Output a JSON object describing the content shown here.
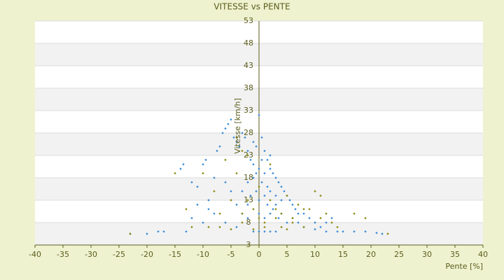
{
  "chart_data": {
    "type": "scatter",
    "title": "VITESSE vs PENTE",
    "x_label": "Pente [%]",
    "y_label": "Vitesse [km/h]",
    "xlim": [
      -40,
      40
    ],
    "xticks": [
      -40,
      -35,
      -30,
      -25,
      -20,
      -15,
      -10,
      -5,
      0,
      5,
      10,
      15,
      20,
      25,
      30,
      35,
      40
    ],
    "ylim": [
      3,
      53
    ],
    "yticks": [
      3,
      8,
      13,
      18,
      23,
      28,
      33,
      38,
      43,
      48,
      53
    ],
    "grid": true,
    "series": [
      {
        "color": "#3a8ad6",
        "x": [
          -23,
          -20,
          -18,
          -17,
          -13,
          -14,
          -13.5,
          -12,
          -11,
          -10,
          -9.5,
          -9,
          -8,
          -7.5,
          -7,
          -6.5,
          -6,
          -5.5,
          -5,
          -4.5,
          -4,
          -3.5,
          -3,
          -2.5,
          -2,
          -1.5,
          -1,
          -0.5,
          0,
          0.5,
          1,
          1.5,
          2,
          2.5,
          3,
          3.5,
          4,
          4.5,
          5,
          5.5,
          6,
          6.5,
          7,
          8,
          9,
          10,
          11,
          12,
          13,
          14,
          15,
          17,
          19,
          21,
          22,
          -1,
          -0.5,
          0,
          0.5,
          1,
          1.5,
          2,
          -1.5,
          -2,
          -3,
          -4,
          -5,
          -6,
          -8,
          -10,
          0,
          1,
          2,
          3,
          4,
          5,
          6,
          0,
          1,
          2,
          3,
          -1,
          0.5,
          -0.5,
          1,
          2,
          -1,
          3,
          4,
          -2,
          -3,
          0,
          1.5,
          2.5,
          3.5,
          -9,
          -11,
          -12,
          -6,
          -4,
          -2,
          7,
          8,
          10,
          12
        ],
        "values": [
          5.5,
          5.5,
          6,
          6,
          6,
          20,
          21,
          17,
          16,
          21,
          22,
          13,
          18,
          24,
          25,
          28,
          29,
          30,
          31,
          27,
          26,
          25,
          28,
          27,
          24,
          22,
          26,
          25,
          32,
          27,
          24,
          22,
          20,
          19,
          18,
          17,
          16,
          15,
          14,
          13,
          12,
          11,
          10,
          10,
          9,
          8,
          7,
          8,
          9,
          6,
          6,
          6,
          6,
          5.7,
          5.5,
          18,
          15,
          20,
          17,
          14,
          12,
          15,
          14,
          12,
          10,
          12,
          15,
          17,
          10,
          8,
          10,
          9,
          10,
          12,
          10,
          8,
          9,
          6,
          6,
          6,
          6,
          6,
          22,
          19,
          19,
          23,
          21,
          14,
          13,
          17,
          15,
          13,
          16,
          11,
          9,
          11,
          12,
          9,
          8,
          7,
          9,
          8,
          7,
          6.5,
          6
        ]
      },
      {
        "color": "#8a8a10",
        "x": [
          -23,
          -15,
          -13,
          -12,
          -10,
          -9,
          -8,
          -7,
          -6,
          -5,
          -4,
          -3,
          -2,
          -1,
          0,
          1,
          2,
          3,
          4,
          5,
          6,
          7,
          8,
          9,
          10,
          11,
          12,
          14,
          17,
          19,
          23,
          -7,
          -5,
          -3,
          -1,
          1,
          3,
          5,
          -2,
          0,
          2,
          4,
          6,
          8,
          -4,
          -3,
          11,
          13
        ],
        "values": [
          5.5,
          19,
          11,
          7,
          19,
          7,
          15,
          10,
          22,
          13,
          19,
          8,
          23,
          11,
          16,
          8,
          21,
          11,
          7,
          14,
          9,
          12,
          7,
          11,
          15,
          14,
          10,
          7,
          10,
          9,
          5.5,
          7,
          6.5,
          10,
          6.5,
          7,
          9,
          6.5,
          13,
          9,
          13,
          10,
          8,
          11,
          27,
          24,
          9,
          8
        ]
      }
    ]
  }
}
